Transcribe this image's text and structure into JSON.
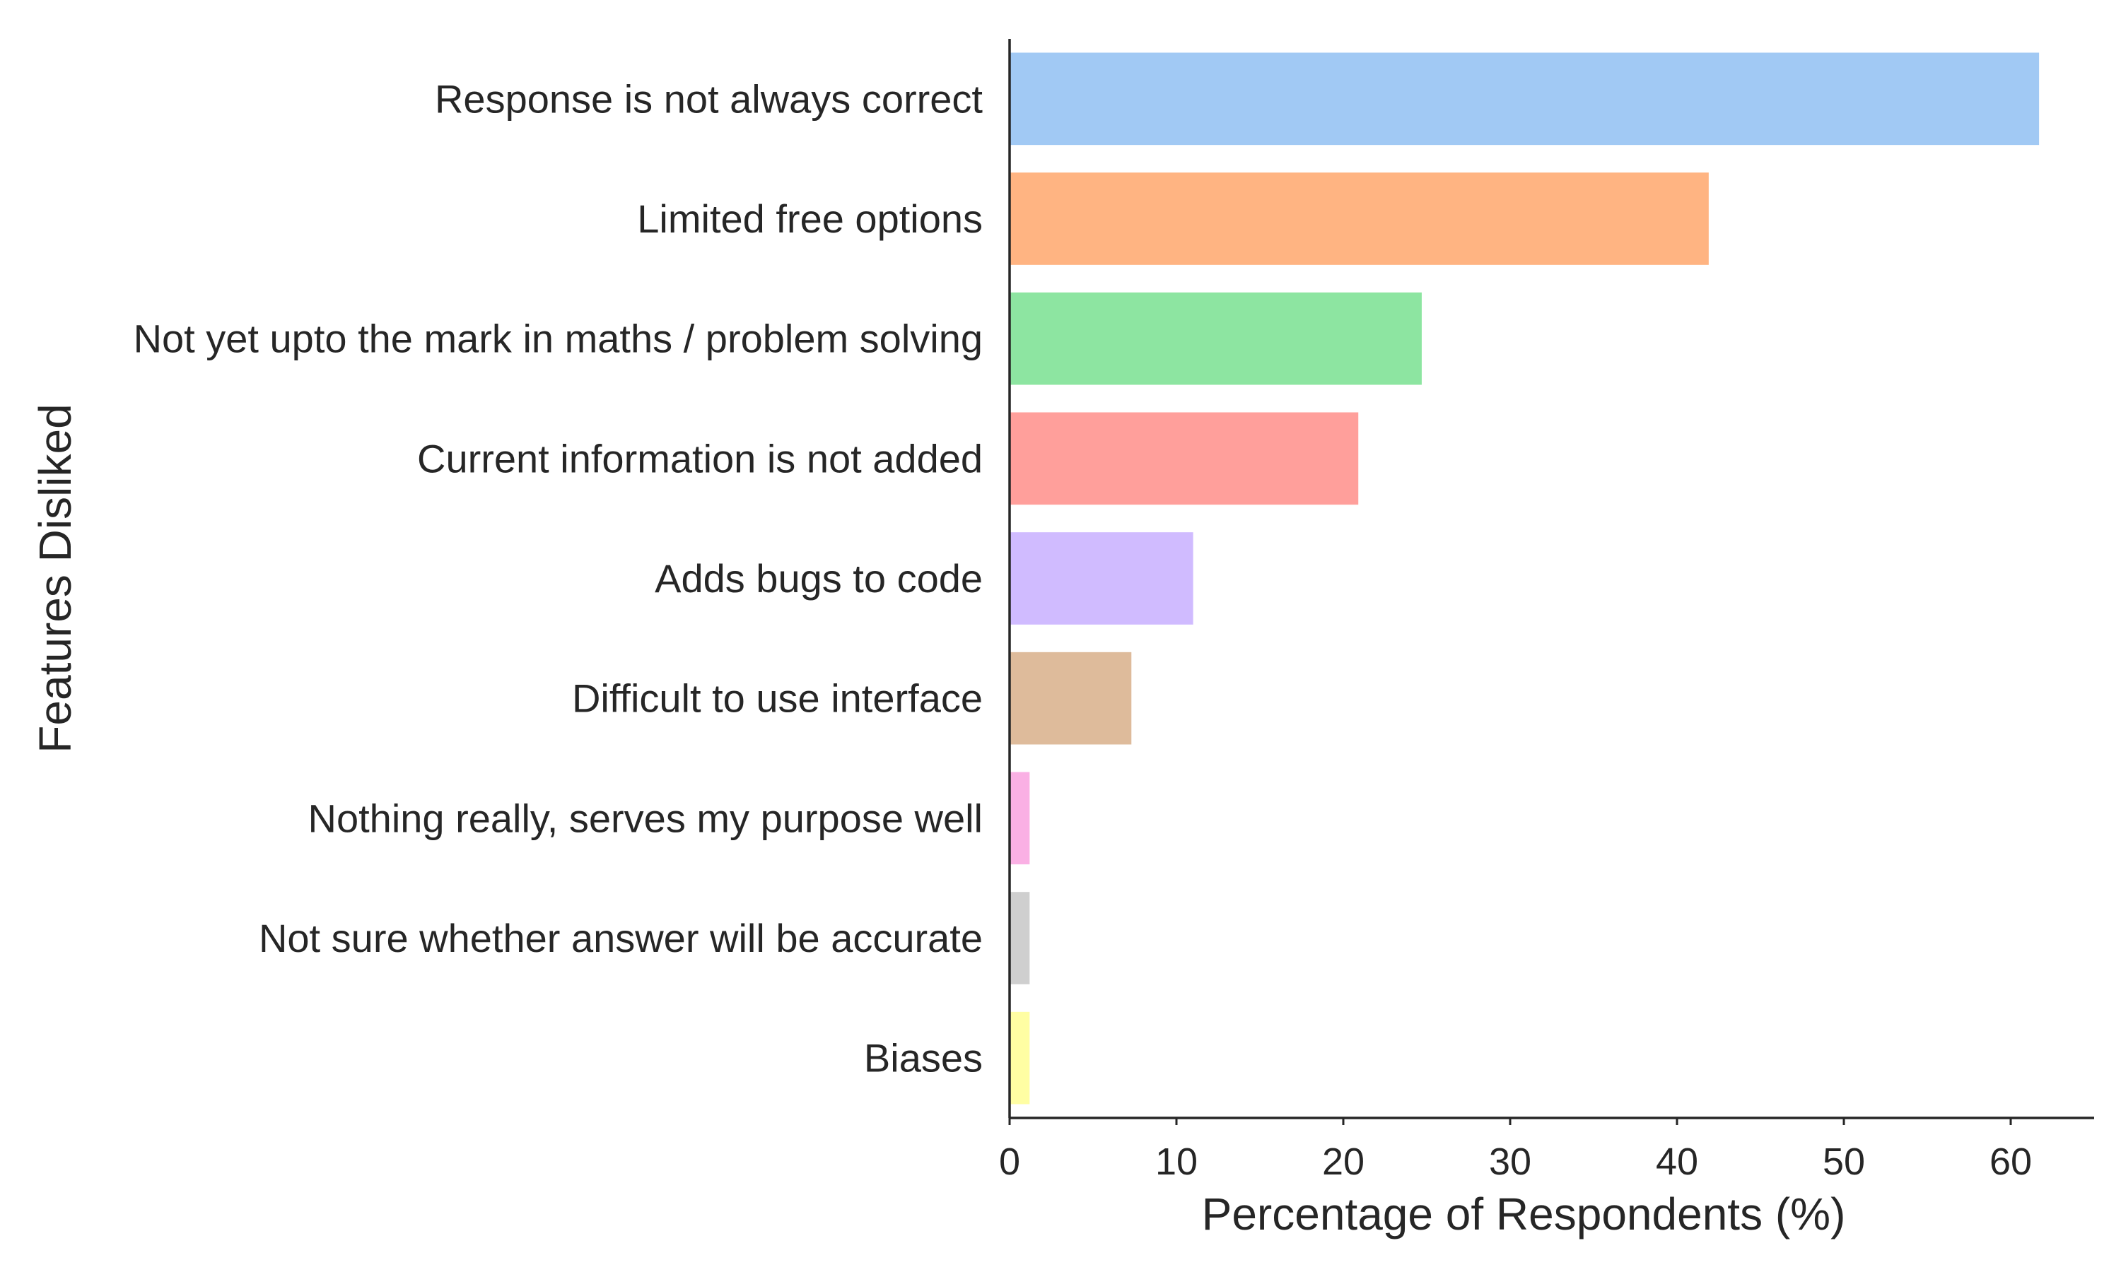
{
  "chart_data": {
    "type": "bar",
    "orientation": "horizontal",
    "xlabel": "Percentage of Respondents (%)",
    "ylabel": "Features Disliked",
    "xlim": [
      0,
      65
    ],
    "xticks": [
      0,
      10,
      20,
      30,
      40,
      50,
      60
    ],
    "grid": false,
    "categories": [
      "Response is not always correct",
      "Limited free options",
      "Not yet upto the mark in maths / problem solving",
      "Current information is not added",
      "Adds bugs to code",
      "Difficult to use interface",
      "Nothing really, serves my purpose well",
      "Not sure whether answer will be accurate",
      "Biases"
    ],
    "values": [
      61.7,
      41.9,
      24.7,
      20.9,
      11.0,
      7.3,
      1.2,
      1.2,
      1.2
    ],
    "colors": [
      "#a1c9f4",
      "#ffb482",
      "#8de5a1",
      "#ff9f9b",
      "#d0bbff",
      "#debb9b",
      "#fab0e4",
      "#cfcfcf",
      "#fffea3"
    ]
  }
}
